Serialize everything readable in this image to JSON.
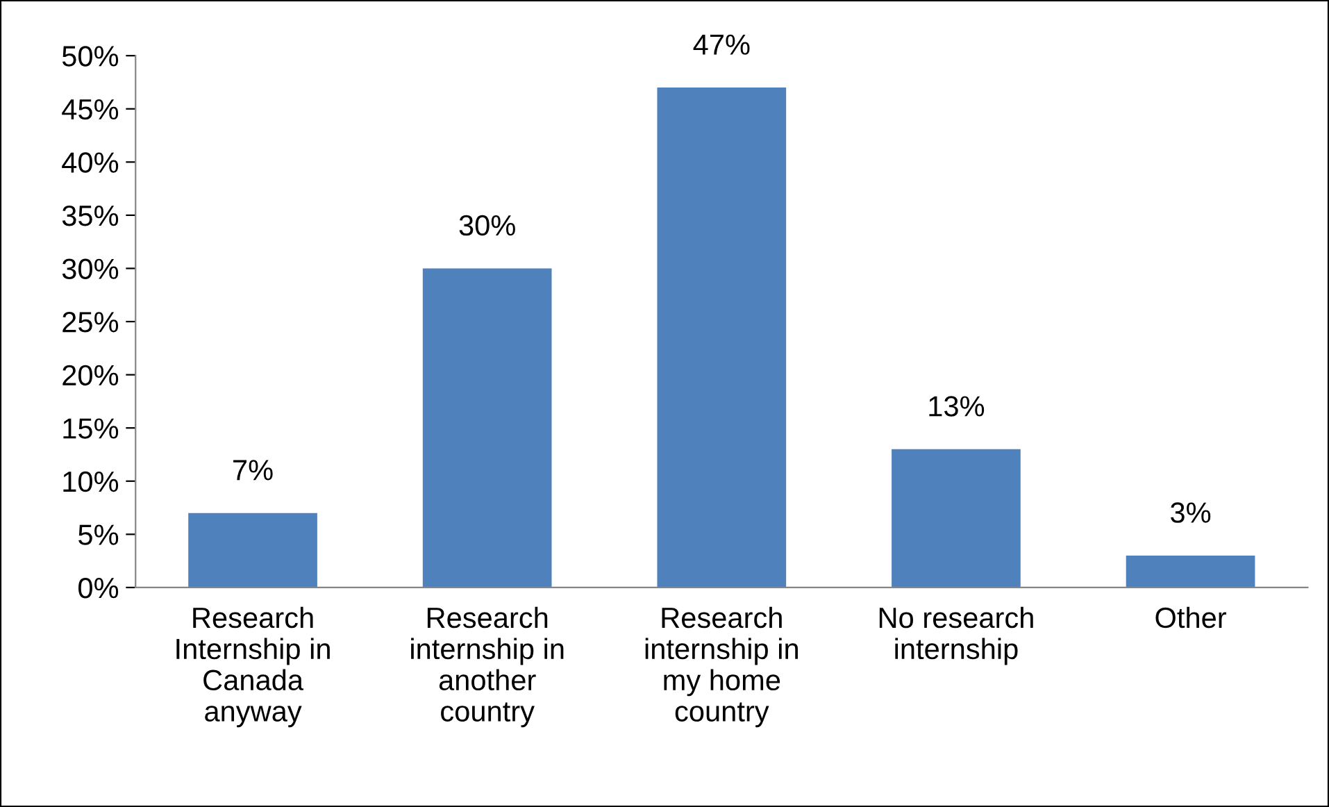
{
  "chart_data": {
    "type": "bar",
    "categories": [
      "Research\nInternship in\nCanada\nanyway",
      "Research\ninternship in\nanother\ncountry",
      "Research\ninternship in\nmy home\ncountry",
      "No research\ninternship",
      "Other"
    ],
    "values": [
      7,
      30,
      47,
      13,
      3
    ],
    "value_labels": [
      "7%",
      "30%",
      "47%",
      "13%",
      "3%"
    ],
    "color": "#4f81bd",
    "ylim": [
      0,
      50
    ],
    "yticks": [
      {
        "value": 0,
        "label": "0%"
      },
      {
        "value": 5,
        "label": "5%"
      },
      {
        "value": 10,
        "label": "10%"
      },
      {
        "value": 15,
        "label": "15%"
      },
      {
        "value": 20,
        "label": "20%"
      },
      {
        "value": 25,
        "label": "25%"
      },
      {
        "value": 30,
        "label": "30%"
      },
      {
        "value": 35,
        "label": "35%"
      },
      {
        "value": 40,
        "label": "40%"
      },
      {
        "value": 45,
        "label": "45%"
      },
      {
        "value": 50,
        "label": "50%"
      }
    ],
    "grid": false,
    "legend": false
  }
}
